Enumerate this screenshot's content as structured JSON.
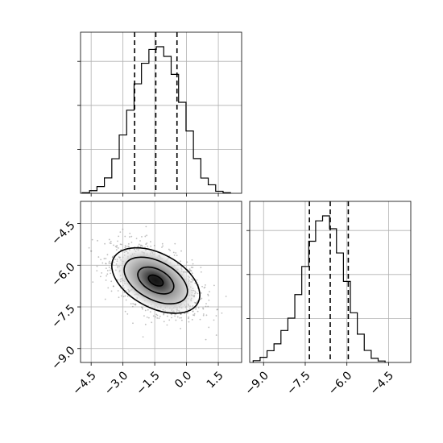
{
  "chart_data": {
    "type": "corner",
    "panels": [
      {
        "id": "hist_x",
        "type": "histogram",
        "xlim": [
          -5.0,
          2.6
        ],
        "ylim": [
          0,
          1.0
        ],
        "bins": [
          -4.75,
          -4.4,
          -4.05,
          -3.7,
          -3.35,
          -3.0,
          -2.65,
          -2.3,
          -1.95,
          -1.6,
          -1.25,
          -0.9,
          -0.55,
          -0.2,
          0.15,
          0.5,
          0.85,
          1.2,
          1.55,
          1.9
        ],
        "counts": [
          0.004,
          0.018,
          0.046,
          0.105,
          0.236,
          0.398,
          0.567,
          0.747,
          0.887,
          0.981,
          1.0,
          0.934,
          0.811,
          0.621,
          0.425,
          0.237,
          0.104,
          0.058,
          0.014,
          0.004
        ],
        "quantiles": [
          -2.45,
          -1.45,
          -0.45
        ],
        "grid": true
      },
      {
        "id": "joint",
        "type": "2d-density",
        "xlim": [
          -5.0,
          2.6
        ],
        "ylim": [
          -9.5,
          -3.7
        ],
        "x_ticks": [
          "−4.5",
          "−3.0",
          "−1.5",
          "0.0",
          "1.5"
        ],
        "x_tick_values": [
          -4.5,
          -3.0,
          -1.5,
          0.0,
          1.5
        ],
        "y_ticks": [
          "−4.5",
          "−6.0",
          "−7.5",
          "−9.0"
        ],
        "y_tick_values": [
          -4.5,
          -6.0,
          -7.5,
          -9.0
        ],
        "center": [
          -1.45,
          -6.55
        ],
        "contour_levels": [
          {
            "rx": 2.25,
            "ry": 1.02,
            "angle": -28
          },
          {
            "rx": 1.62,
            "ry": 0.72,
            "angle": -28
          },
          {
            "rx": 0.92,
            "ry": 0.42,
            "angle": -28
          },
          {
            "rx": 0.38,
            "ry": 0.17,
            "angle": -28
          }
        ],
        "grid": true
      },
      {
        "id": "hist_y",
        "type": "histogram",
        "xlim": [
          -9.5,
          -3.7
        ],
        "ylim": [
          0,
          1.0
        ],
        "x_ticks": [
          "−9.0",
          "−7.5",
          "−6.0",
          "−4.5"
        ],
        "x_tick_values": [
          -9.0,
          -7.5,
          -6.0,
          -4.5
        ],
        "bins": [
          -9.25,
          -9.0,
          -8.75,
          -8.5,
          -8.25,
          -8.0,
          -7.75,
          -7.5,
          -7.25,
          -7.0,
          -6.75,
          -6.5,
          -6.25,
          -6.0,
          -5.75,
          -5.5,
          -5.25,
          -5.0,
          -4.75
        ],
        "counts": [
          0.012,
          0.035,
          0.08,
          0.127,
          0.218,
          0.302,
          0.463,
          0.655,
          0.827,
          0.966,
          1.0,
          0.912,
          0.747,
          0.553,
          0.339,
          0.193,
          0.082,
          0.028,
          0.01
        ],
        "quantiles": [
          -7.35,
          -6.6,
          -5.95
        ],
        "grid": true
      }
    ]
  }
}
